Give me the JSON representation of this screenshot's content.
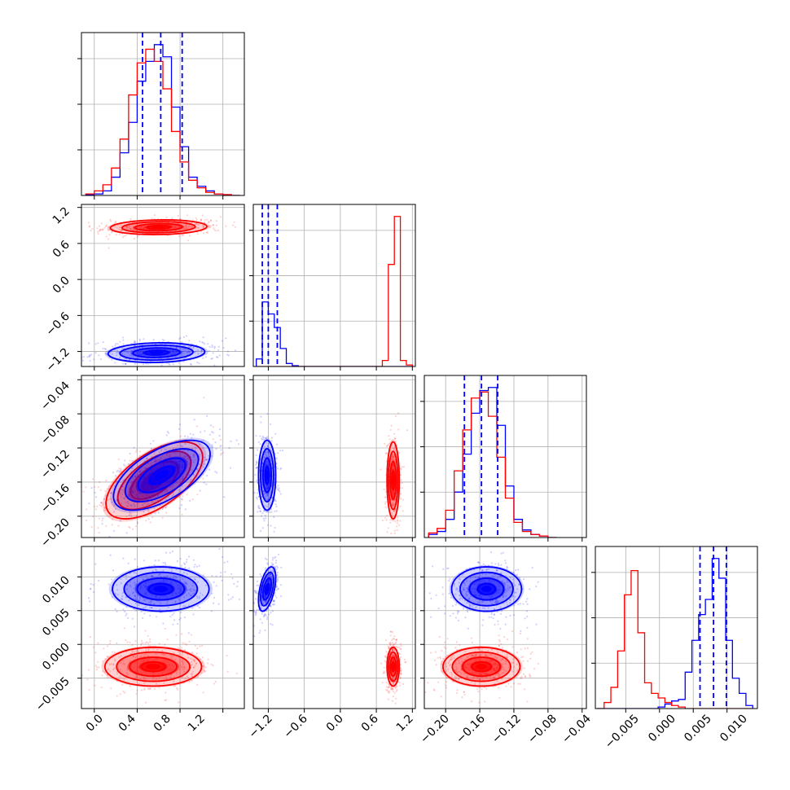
{
  "colors": {
    "blue": "#0000ff",
    "red": "#ff0000",
    "grid": "#b0b0b0",
    "frame": "#000000"
  },
  "chart_data": [
    {
      "type": "histogram",
      "panel": [
        0,
        0
      ],
      "xlim": [
        -0.12,
        1.4
      ],
      "xticks": [
        0.0,
        0.4,
        0.8,
        1.2
      ],
      "quantile_lines": [
        0.45,
        0.62,
        0.82
      ],
      "quantile_color": "blue",
      "series": [
        {
          "color": "blue",
          "edges": [
            -0.08,
            0.0,
            0.08,
            0.16,
            0.24,
            0.32,
            0.4,
            0.48,
            0.56,
            0.64,
            0.72,
            0.8,
            0.88,
            0.96,
            1.04,
            1.12,
            1.2,
            1.28,
            1.36
          ],
          "counts": [
            0.005,
            0.01,
            0.03,
            0.12,
            0.28,
            0.48,
            0.75,
            0.88,
            0.99,
            0.91,
            0.58,
            0.32,
            0.12,
            0.06,
            0.03,
            0.01,
            0.005,
            0.0
          ]
        },
        {
          "color": "red",
          "edges": [
            -0.08,
            0.0,
            0.08,
            0.16,
            0.24,
            0.32,
            0.4,
            0.48,
            0.56,
            0.64,
            0.72,
            0.8,
            0.88,
            0.96,
            1.04,
            1.12,
            1.2,
            1.28,
            1.36
          ],
          "counts": [
            0.01,
            0.03,
            0.07,
            0.18,
            0.37,
            0.66,
            0.87,
            0.96,
            0.88,
            0.7,
            0.42,
            0.22,
            0.1,
            0.05,
            0.02,
            0.01,
            0.005,
            0.0
          ]
        }
      ]
    },
    {
      "type": "histogram",
      "panel": [
        1,
        1
      ],
      "xlim": [
        -1.45,
        1.25
      ],
      "xticks": [
        -1.2,
        -0.6,
        0.0,
        0.6,
        1.2
      ],
      "quantile_lines": [
        -1.3,
        -1.2,
        -1.05
      ],
      "quantile_color": "blue",
      "series": [
        {
          "color": "blue",
          "edges": [
            -1.4,
            -1.3,
            -1.2,
            -1.1,
            -1.0,
            -0.9,
            -0.8,
            -0.7,
            -0.6,
            -0.5,
            -0.4,
            -0.3,
            -0.2,
            -0.1,
            0.0,
            0.1,
            0.2,
            0.3,
            0.4,
            0.5,
            0.6,
            0.7,
            0.8,
            0.9,
            1.0,
            1.1,
            1.2
          ],
          "counts": [
            0.05,
            0.43,
            0.35,
            0.26,
            0.12,
            0.02,
            0.005,
            0,
            0,
            0,
            0,
            0,
            0,
            0,
            0,
            0,
            0,
            0,
            0,
            0,
            0,
            0,
            0,
            0,
            0,
            0
          ]
        },
        {
          "color": "red",
          "edges": [
            -1.4,
            -1.3,
            -1.2,
            -1.1,
            -1.0,
            -0.9,
            -0.8,
            -0.7,
            -0.6,
            -0.5,
            -0.4,
            -0.3,
            -0.2,
            -0.1,
            0.0,
            0.1,
            0.2,
            0.3,
            0.4,
            0.5,
            0.6,
            0.7,
            0.8,
            0.9,
            1.0,
            1.1,
            1.2
          ],
          "counts": [
            0,
            0,
            0,
            0,
            0,
            0,
            0,
            0,
            0,
            0,
            0,
            0,
            0,
            0,
            0,
            0,
            0,
            0,
            0,
            0,
            0,
            0.04,
            0.68,
            1.0,
            0.04,
            0.01
          ]
        }
      ]
    },
    {
      "type": "histogram",
      "panel": [
        2,
        2
      ],
      "xlim": [
        -0.225,
        -0.035
      ],
      "xticks": [
        -0.2,
        -0.16,
        -0.12,
        -0.08,
        -0.04
      ],
      "quantile_lines": [
        -0.178,
        -0.158,
        -0.139
      ],
      "quantile_color": "blue",
      "series": [
        {
          "color": "blue",
          "edges": [
            -0.22,
            -0.21,
            -0.2,
            -0.19,
            -0.18,
            -0.17,
            -0.16,
            -0.15,
            -0.14,
            -0.13,
            -0.12,
            -0.11,
            -0.1,
            -0.09,
            -0.08,
            -0.07
          ],
          "counts": [
            0.02,
            0.04,
            0.12,
            0.3,
            0.55,
            0.82,
            0.97,
            0.99,
            0.74,
            0.34,
            0.12,
            0.05,
            0.02,
            0.01,
            0.0
          ]
        },
        {
          "color": "red",
          "edges": [
            -0.22,
            -0.21,
            -0.2,
            -0.19,
            -0.18,
            -0.17,
            -0.16,
            -0.15,
            -0.14,
            -0.13,
            -0.12,
            -0.11,
            -0.1,
            -0.09,
            -0.08,
            -0.07
          ],
          "counts": [
            0.03,
            0.06,
            0.18,
            0.44,
            0.71,
            0.92,
            0.96,
            0.8,
            0.53,
            0.26,
            0.1,
            0.04,
            0.02,
            0.01,
            0.0
          ]
        }
      ]
    },
    {
      "type": "histogram",
      "panel": [
        3,
        3
      ],
      "xlim": [
        -0.0095,
        0.0145
      ],
      "xticks": [
        -0.005,
        0.0,
        0.005,
        0.01
      ],
      "quantile_lines": [
        0.006,
        0.008,
        0.0099
      ],
      "quantile_color": "blue",
      "series": [
        {
          "color": "blue",
          "edges": [
            -0.0092,
            -0.0082,
            -0.0072,
            -0.0062,
            -0.0052,
            -0.0042,
            -0.0032,
            -0.0022,
            -0.0012,
            -0.0002,
            0.0008,
            0.0018,
            0.0028,
            0.0038,
            0.0048,
            0.0058,
            0.0068,
            0.0078,
            0.0088,
            0.0098,
            0.0108,
            0.0118,
            0.0128,
            0.0138
          ],
          "counts": [
            0,
            0,
            0,
            0,
            0,
            0,
            0,
            0,
            0,
            0.01,
            0.03,
            0.05,
            0.06,
            0.24,
            0.45,
            0.62,
            0.72,
            0.99,
            0.86,
            0.45,
            0.2,
            0.1,
            0.02
          ]
        },
        {
          "color": "red",
          "edges": [
            -0.0092,
            -0.0082,
            -0.0072,
            -0.0062,
            -0.0052,
            -0.0042,
            -0.0032,
            -0.0022,
            -0.0012,
            -0.0002,
            0.0008,
            0.0018,
            0.0028,
            0.0038,
            0.0048,
            0.0058,
            0.0068,
            0.0078,
            0.0088,
            0.0098,
            0.0108,
            0.0118,
            0.0128,
            0.0138
          ],
          "counts": [
            0.0,
            0.04,
            0.14,
            0.38,
            0.75,
            0.91,
            0.5,
            0.17,
            0.1,
            0.07,
            0.04,
            0.02,
            0.01,
            0,
            0,
            0,
            0,
            0,
            0,
            0,
            0,
            0,
            0
          ]
        }
      ]
    },
    {
      "type": "scatter",
      "panel": [
        1,
        0
      ],
      "xlim": [
        -0.12,
        1.4
      ],
      "ylim": [
        -1.45,
        1.25
      ],
      "xticks": [
        0.0,
        0.4,
        0.8,
        1.2
      ],
      "yticks": [
        -1.2,
        -0.6,
        0.0,
        0.6,
        1.2
      ],
      "series": [
        {
          "color": "red",
          "center": [
            0.6,
            0.87
          ],
          "spread": [
            0.22,
            0.06
          ],
          "corr": 0.1,
          "scatter_spread": [
            0.3,
            0.08
          ],
          "points": 420
        },
        {
          "color": "blue",
          "center": [
            0.58,
            -1.22
          ],
          "spread": [
            0.22,
            0.08
          ],
          "corr": 0.1,
          "scatter_spread": [
            0.3,
            0.11
          ],
          "points": 420
        }
      ]
    },
    {
      "type": "scatter",
      "panel": [
        2,
        0
      ],
      "xlim": [
        -0.12,
        1.4
      ],
      "ylim": [
        -0.225,
        -0.035
      ],
      "xticks": [
        0.0,
        0.4,
        0.8,
        1.2
      ],
      "yticks": [
        -0.2,
        -0.16,
        -0.12,
        -0.08,
        -0.04
      ],
      "series": [
        {
          "color": "red",
          "center": [
            0.56,
            -0.158
          ],
          "spread": [
            0.22,
            0.022
          ],
          "corr": 0.6,
          "scatter_spread": [
            0.28,
            0.026
          ],
          "points": 420
        },
        {
          "color": "blue",
          "center": [
            0.63,
            -0.152
          ],
          "spread": [
            0.22,
            0.02
          ],
          "corr": 0.6,
          "scatter_spread": [
            0.28,
            0.024
          ],
          "points": 420
        }
      ]
    },
    {
      "type": "scatter",
      "panel": [
        2,
        1
      ],
      "xlim": [
        -1.45,
        1.25
      ],
      "ylim": [
        -0.225,
        -0.035
      ],
      "xticks": [
        -1.2,
        -0.6,
        0.0,
        0.6,
        1.2
      ],
      "yticks": [
        -0.2,
        -0.16,
        -0.12,
        -0.08,
        -0.04
      ],
      "series": [
        {
          "color": "blue",
          "center": [
            -1.22,
            -0.152
          ],
          "spread": [
            0.07,
            0.02
          ],
          "corr": 0.0,
          "scatter_spread": [
            0.09,
            0.025
          ],
          "points": 380
        },
        {
          "color": "red",
          "center": [
            0.88,
            -0.158
          ],
          "spread": [
            0.05,
            0.022
          ],
          "corr": 0.0,
          "scatter_spread": [
            0.065,
            0.027
          ],
          "points": 380
        }
      ]
    },
    {
      "type": "scatter",
      "panel": [
        3,
        0
      ],
      "xlim": [
        -0.12,
        1.4
      ],
      "ylim": [
        -0.0095,
        0.0145
      ],
      "xticks": [
        0.0,
        0.4,
        0.8,
        1.2
      ],
      "yticks": [
        -0.005,
        0.0,
        0.005,
        0.01
      ],
      "series": [
        {
          "color": "blue",
          "center": [
            0.62,
            0.0082
          ],
          "spread": [
            0.22,
            0.0016
          ],
          "corr": 0.0,
          "scatter_spread": [
            0.3,
            0.0021
          ],
          "points": 420
        },
        {
          "color": "red",
          "center": [
            0.55,
            -0.0033
          ],
          "spread": [
            0.22,
            0.0014
          ],
          "corr": 0.0,
          "scatter_spread": [
            0.3,
            0.0019
          ],
          "points": 420
        }
      ]
    },
    {
      "type": "scatter",
      "panel": [
        3,
        1
      ],
      "xlim": [
        -1.45,
        1.25
      ],
      "ylim": [
        -0.0095,
        0.0145
      ],
      "xticks": [
        -1.2,
        -0.6,
        0.0,
        0.6,
        1.2
      ],
      "yticks": [
        -0.005,
        0.0,
        0.005,
        0.01
      ],
      "series": [
        {
          "color": "blue",
          "center": [
            -1.22,
            0.0082
          ],
          "spread": [
            0.07,
            0.0016
          ],
          "corr": 0.5,
          "scatter_spread": [
            0.09,
            0.0021
          ],
          "points": 380
        },
        {
          "color": "red",
          "center": [
            0.88,
            -0.0033
          ],
          "spread": [
            0.05,
            0.0014
          ],
          "corr": 0.0,
          "scatter_spread": [
            0.065,
            0.0019
          ],
          "points": 380
        }
      ]
    },
    {
      "type": "scatter",
      "panel": [
        3,
        2
      ],
      "xlim": [
        -0.225,
        -0.035
      ],
      "ylim": [
        -0.0095,
        0.0145
      ],
      "xticks": [
        -0.2,
        -0.16,
        -0.12,
        -0.08,
        -0.04
      ],
      "yticks": [
        -0.005,
        0.0,
        0.005,
        0.01
      ],
      "series": [
        {
          "color": "blue",
          "center": [
            -0.152,
            0.0082
          ],
          "spread": [
            0.02,
            0.0016
          ],
          "corr": 0.0,
          "scatter_spread": [
            0.025,
            0.0021
          ],
          "points": 420
        },
        {
          "color": "red",
          "center": [
            -0.158,
            -0.0033
          ],
          "spread": [
            0.022,
            0.0014
          ],
          "corr": 0.0,
          "scatter_spread": [
            0.027,
            0.0019
          ],
          "points": 420
        }
      ]
    }
  ],
  "tick_labels": {
    "p0": [
      "0.0",
      "0.4",
      "0.8",
      "1.2"
    ],
    "p1": [
      "−1.2",
      "−0.6",
      "0.0",
      "0.6",
      "1.2"
    ],
    "p2": [
      "−0.20",
      "−0.16",
      "−0.12",
      "−0.08",
      "−0.04"
    ],
    "p3": [
      "−0.005",
      "0.000",
      "0.005",
      "0.010"
    ]
  }
}
